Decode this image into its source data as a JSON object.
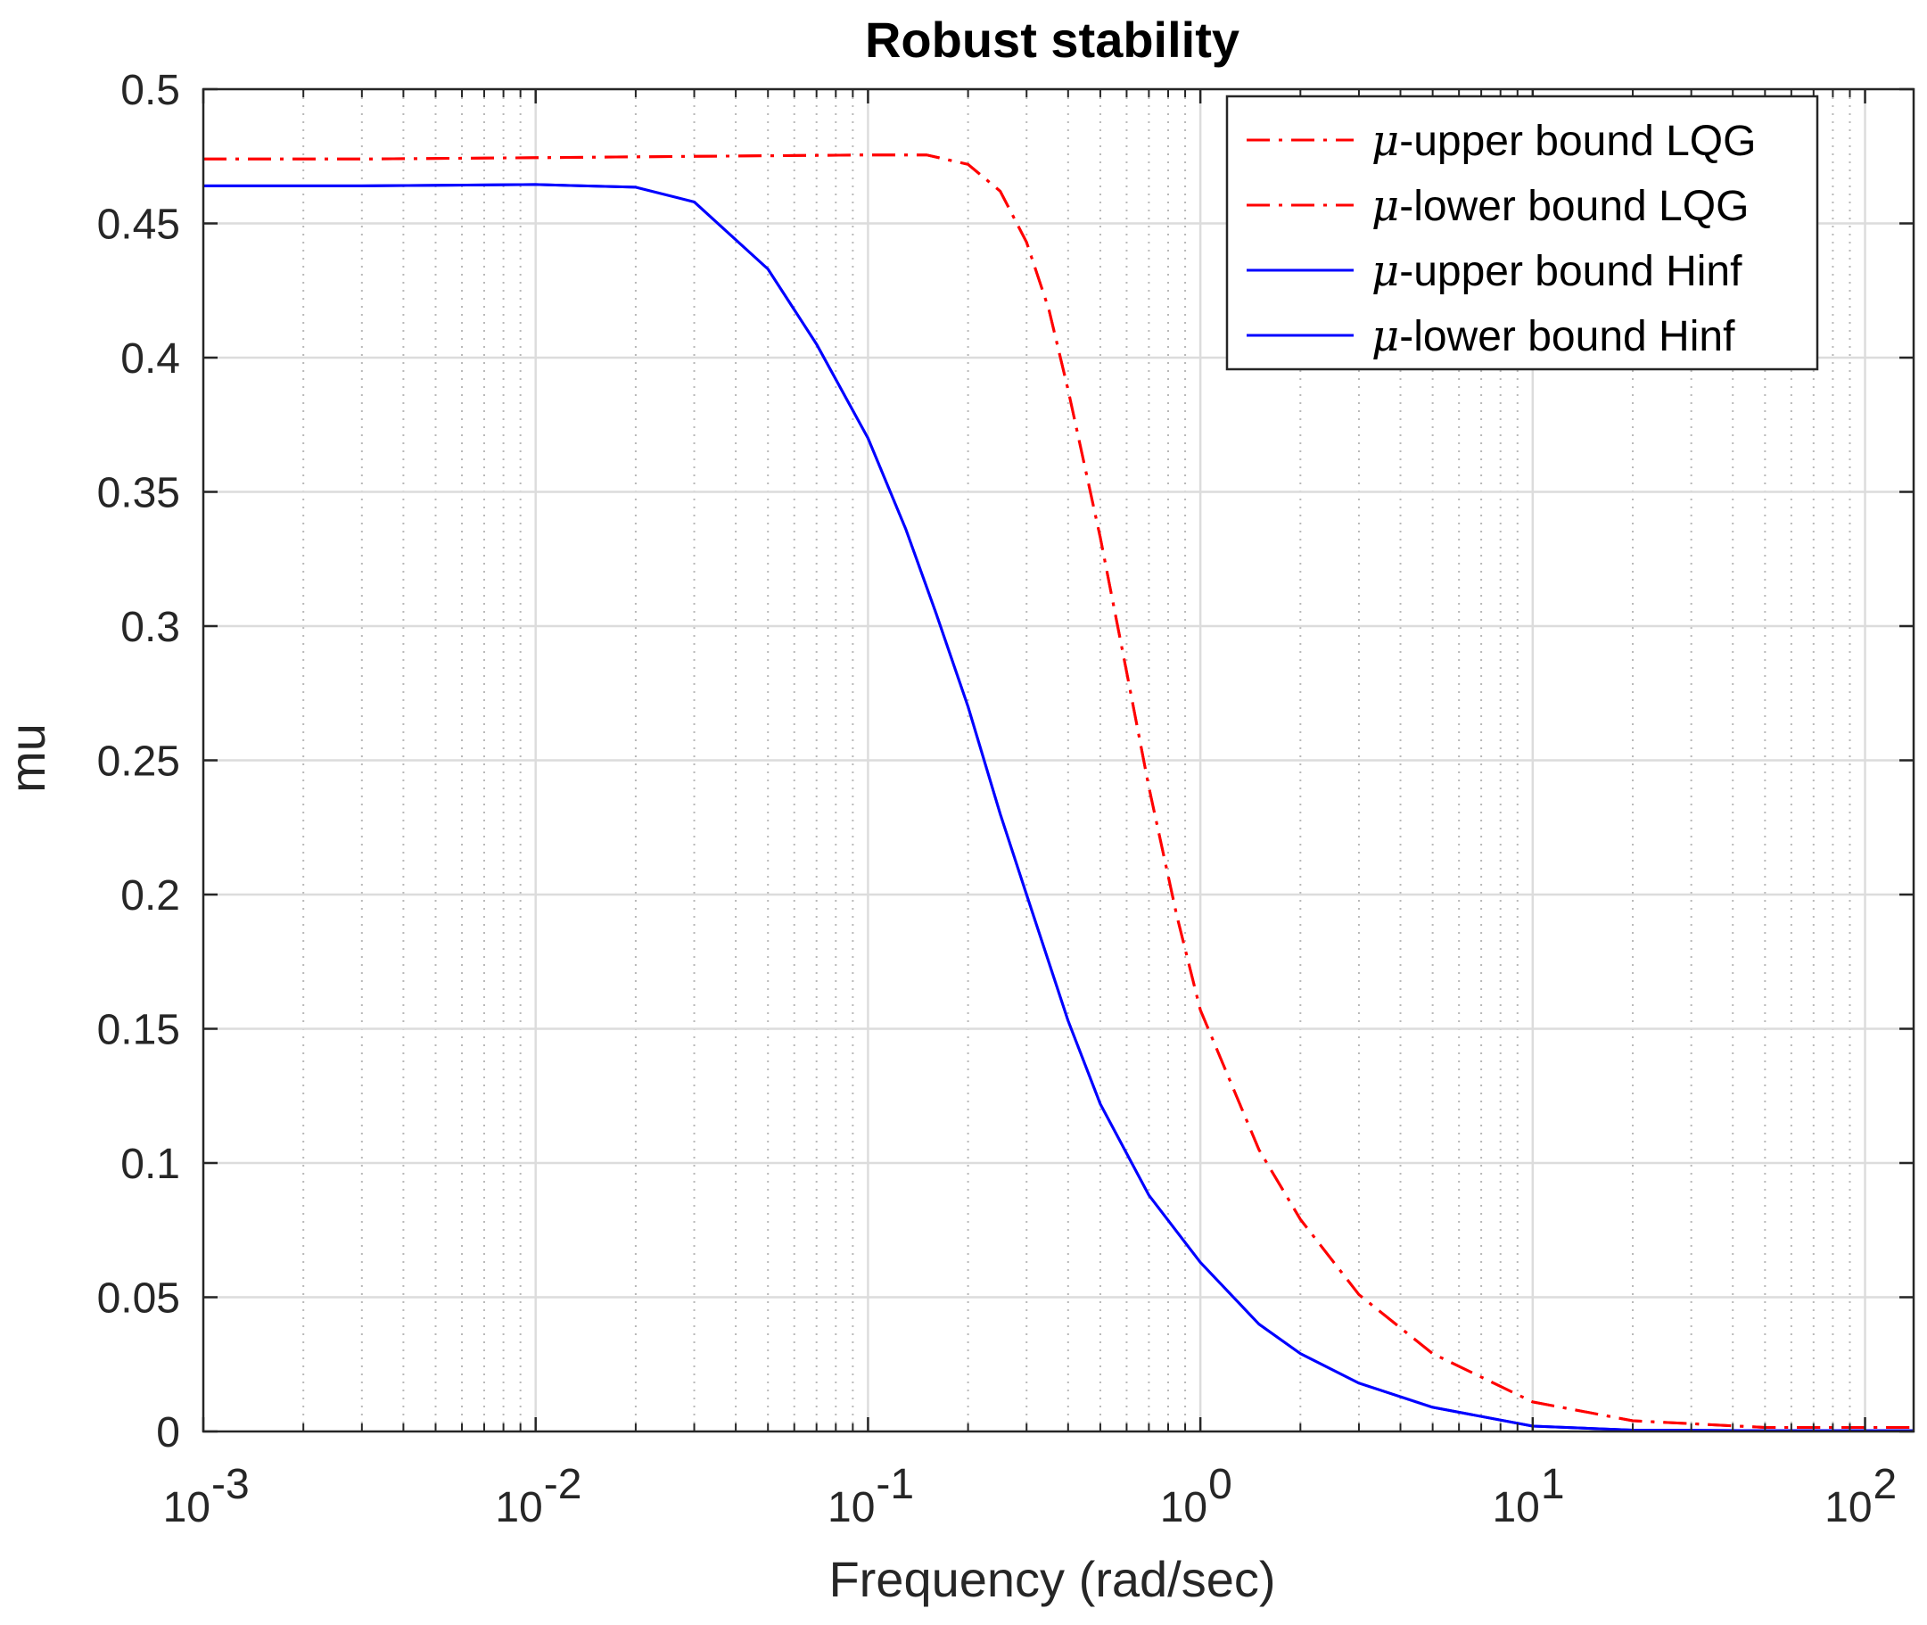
{
  "chart_data": {
    "type": "line",
    "title": "Robust stability",
    "xlabel": "Frequency (rad/sec)",
    "ylabel": "mu",
    "xscale": "log",
    "xlim": [
      0.001,
      140
    ],
    "ylim": [
      0,
      0.5
    ],
    "grid": true,
    "legend_position": "top-right",
    "x_ticks": [
      {
        "value": 0.001,
        "base": "10",
        "exp": "-3"
      },
      {
        "value": 0.01,
        "base": "10",
        "exp": "-2"
      },
      {
        "value": 0.1,
        "base": "10",
        "exp": "-1"
      },
      {
        "value": 1,
        "base": "10",
        "exp": "0"
      },
      {
        "value": 10,
        "base": "10",
        "exp": "1"
      },
      {
        "value": 100,
        "base": "10",
        "exp": "2"
      }
    ],
    "y_ticks": [
      {
        "value": 0,
        "label": "0"
      },
      {
        "value": 0.05,
        "label": "0.05"
      },
      {
        "value": 0.1,
        "label": "0.1"
      },
      {
        "value": 0.15,
        "label": "0.15"
      },
      {
        "value": 0.2,
        "label": "0.2"
      },
      {
        "value": 0.25,
        "label": "0.25"
      },
      {
        "value": 0.3,
        "label": "0.3"
      },
      {
        "value": 0.35,
        "label": "0.35"
      },
      {
        "value": 0.4,
        "label": "0.4"
      },
      {
        "value": 0.45,
        "label": "0.45"
      },
      {
        "value": 0.5,
        "label": "0.5"
      }
    ],
    "series": [
      {
        "name": "μ-upper bound LQG",
        "legend_symbol": "μ",
        "legend_rest": "-upper bound LQG",
        "color": "#ff0000",
        "style": "dashdot",
        "x": [
          0.001,
          0.003,
          0.01,
          0.03,
          0.1,
          0.15,
          0.2,
          0.25,
          0.3,
          0.35,
          0.4,
          0.5,
          0.6,
          0.7,
          0.85,
          1.0,
          1.5,
          2,
          3,
          5,
          10,
          20,
          50,
          100,
          140
        ],
        "y": [
          0.474,
          0.474,
          0.4745,
          0.475,
          0.4755,
          0.4755,
          0.472,
          0.462,
          0.443,
          0.418,
          0.388,
          0.333,
          0.283,
          0.24,
          0.192,
          0.157,
          0.105,
          0.079,
          0.051,
          0.029,
          0.011,
          0.004,
          0.0015,
          0.0015,
          0.0015
        ]
      },
      {
        "name": "μ-lower bound LQG",
        "legend_symbol": "μ",
        "legend_rest": "-lower bound LQG",
        "color": "#ff0000",
        "style": "dashdot",
        "x": [
          0.001,
          0.003,
          0.01,
          0.03,
          0.1,
          0.15,
          0.2,
          0.25,
          0.3,
          0.35,
          0.4,
          0.5,
          0.6,
          0.7,
          0.85,
          1.0,
          1.5,
          2,
          3,
          5,
          10,
          20,
          50,
          100,
          140
        ],
        "y": [
          0.474,
          0.474,
          0.4745,
          0.475,
          0.4755,
          0.4755,
          0.472,
          0.462,
          0.443,
          0.418,
          0.388,
          0.333,
          0.283,
          0.24,
          0.192,
          0.157,
          0.105,
          0.079,
          0.051,
          0.029,
          0.011,
          0.004,
          0.0015,
          0.0015,
          0.0015
        ]
      },
      {
        "name": "μ-upper bound Hinf",
        "legend_symbol": "μ",
        "legend_rest": "-upper bound Hinf",
        "color": "#0000ff",
        "style": "solid",
        "x": [
          0.001,
          0.003,
          0.01,
          0.02,
          0.03,
          0.05,
          0.07,
          0.1,
          0.13,
          0.16,
          0.2,
          0.25,
          0.3,
          0.4,
          0.5,
          0.7,
          1.0,
          1.5,
          2,
          3,
          5,
          10,
          20,
          50,
          100,
          140
        ],
        "y": [
          0.464,
          0.464,
          0.4645,
          0.4635,
          0.458,
          0.433,
          0.405,
          0.37,
          0.336,
          0.305,
          0.27,
          0.23,
          0.2,
          0.153,
          0.122,
          0.088,
          0.063,
          0.04,
          0.029,
          0.018,
          0.009,
          0.002,
          0.0005,
          0.0003,
          0.0003,
          0.0003
        ]
      },
      {
        "name": "μ-lower bound Hinf",
        "legend_symbol": "μ",
        "legend_rest": "-lower bound Hinf",
        "color": "#0000ff",
        "style": "solid",
        "x": [
          0.001,
          0.003,
          0.01,
          0.02,
          0.03,
          0.05,
          0.07,
          0.1,
          0.13,
          0.16,
          0.2,
          0.25,
          0.3,
          0.4,
          0.5,
          0.7,
          1.0,
          1.5,
          2,
          3,
          5,
          10,
          20,
          50,
          100,
          140
        ],
        "y": [
          0.464,
          0.464,
          0.4645,
          0.4635,
          0.458,
          0.433,
          0.405,
          0.37,
          0.336,
          0.305,
          0.27,
          0.23,
          0.2,
          0.153,
          0.122,
          0.088,
          0.063,
          0.04,
          0.029,
          0.018,
          0.009,
          0.002,
          0.0005,
          0.0003,
          0.0003,
          0.0003
        ]
      }
    ]
  }
}
